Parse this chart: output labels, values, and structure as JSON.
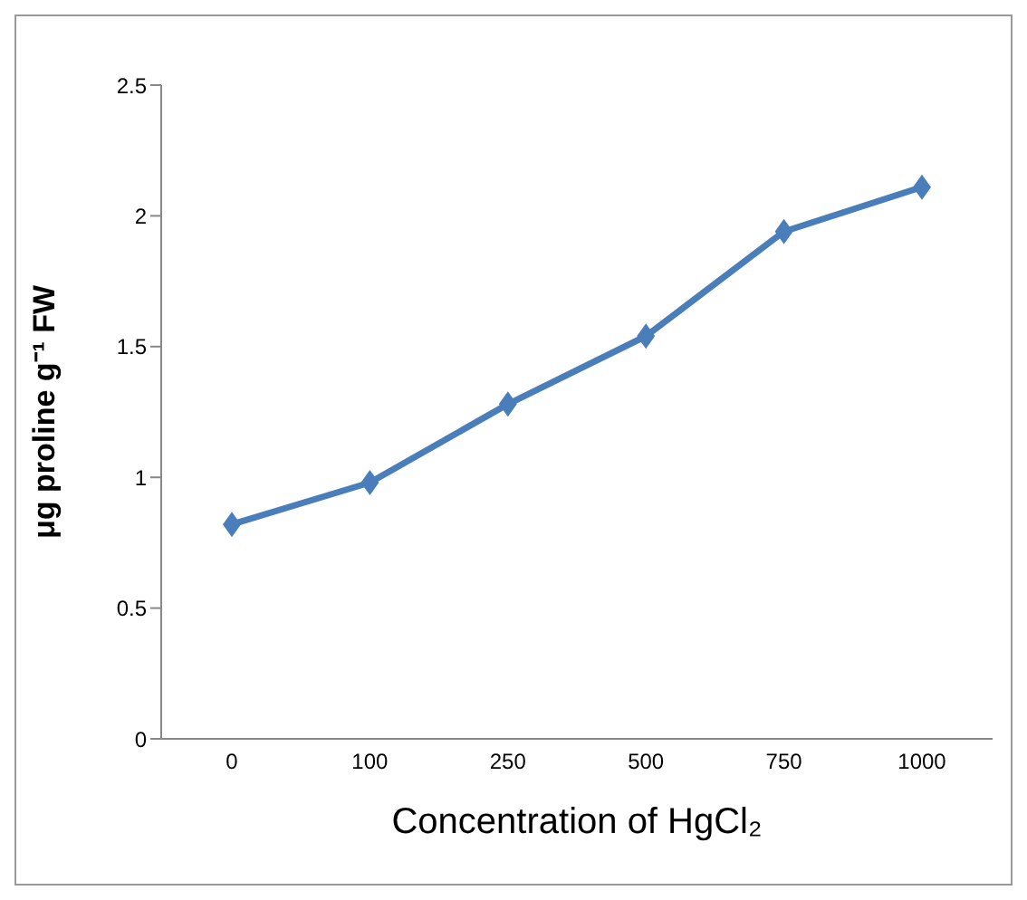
{
  "chart_data": {
    "type": "line",
    "xlabel": "Concentration of HgCl₂",
    "ylabel": "μg proline g⁻¹ FW",
    "categories": [
      "0",
      "100",
      "250",
      "500",
      "750",
      "1000"
    ],
    "series": [
      {
        "color": "#4a7ebb",
        "values": [
          0.82,
          0.98,
          1.28,
          1.54,
          1.94,
          2.11
        ]
      }
    ],
    "ylim": [
      0,
      2.5
    ],
    "yticks": [
      0,
      0.5,
      1,
      1.5,
      2,
      2.5
    ],
    "grid": false,
    "legend": false,
    "marker": "diamond",
    "line_style": "solid"
  }
}
